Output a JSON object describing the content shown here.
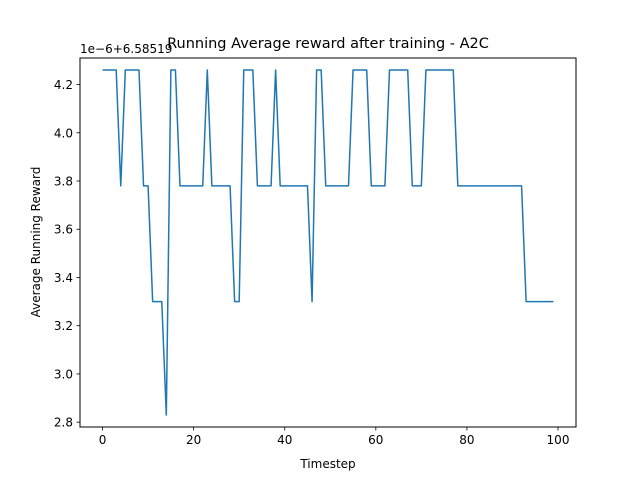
{
  "chart_data": {
    "type": "line",
    "title": "Running Average reward after training - A2C",
    "xlabel": "Timestep",
    "ylabel": "Average Running Reward",
    "offset_label": "1e−6+6.58519",
    "xlim": [
      -4.95,
      103.95
    ],
    "ylim": [
      2.78,
      4.31
    ],
    "x_ticks": [
      0,
      20,
      40,
      60,
      80,
      100
    ],
    "x_tick_labels": [
      "0",
      "20",
      "40",
      "60",
      "80",
      "100"
    ],
    "y_ticks": [
      2.8,
      3.0,
      3.2,
      3.4,
      3.6,
      3.8,
      4.0,
      4.2
    ],
    "y_tick_labels": [
      "2.8",
      "3.0",
      "3.2",
      "3.4",
      "3.6",
      "3.8",
      "4.0",
      "4.2"
    ],
    "grid": false,
    "series": [
      {
        "color": "#1f77b4",
        "x": [
          0,
          1,
          2,
          3,
          4,
          5,
          6,
          7,
          8,
          9,
          10,
          11,
          12,
          13,
          14,
          15,
          16,
          17,
          18,
          19,
          20,
          21,
          22,
          23,
          24,
          25,
          26,
          27,
          28,
          29,
          30,
          31,
          32,
          33,
          34,
          35,
          36,
          37,
          38,
          39,
          40,
          41,
          42,
          43,
          44,
          45,
          46,
          47,
          48,
          49,
          50,
          51,
          52,
          53,
          54,
          55,
          56,
          57,
          58,
          59,
          60,
          61,
          62,
          63,
          64,
          65,
          66,
          67,
          68,
          69,
          70,
          71,
          72,
          73,
          74,
          75,
          76,
          77,
          78,
          79,
          80,
          81,
          82,
          83,
          84,
          85,
          86,
          87,
          88,
          89,
          90,
          91,
          92,
          93,
          94,
          95,
          96,
          97,
          98,
          99
        ],
        "y": [
          4.26,
          4.26,
          4.26,
          4.26,
          3.78,
          4.26,
          4.26,
          4.26,
          4.26,
          3.78,
          3.78,
          3.3,
          3.3,
          3.3,
          2.83,
          4.26,
          4.26,
          3.78,
          3.78,
          3.78,
          3.78,
          3.78,
          3.78,
          4.26,
          3.78,
          3.78,
          3.78,
          3.78,
          3.78,
          3.3,
          3.3,
          4.26,
          4.26,
          4.26,
          3.78,
          3.78,
          3.78,
          3.78,
          4.26,
          3.78,
          3.78,
          3.78,
          3.78,
          3.78,
          3.78,
          3.78,
          3.3,
          4.26,
          4.26,
          3.78,
          3.78,
          3.78,
          3.78,
          3.78,
          3.78,
          4.26,
          4.26,
          4.26,
          4.26,
          3.78,
          3.78,
          3.78,
          3.78,
          4.26,
          4.26,
          4.26,
          4.26,
          4.26,
          3.78,
          3.78,
          3.78,
          4.26,
          4.26,
          4.26,
          4.26,
          4.26,
          4.26,
          4.26,
          3.78,
          3.78,
          3.78,
          3.78,
          3.78,
          3.78,
          3.78,
          3.78,
          3.78,
          3.78,
          3.78,
          3.78,
          3.78,
          3.78,
          3.78,
          3.3,
          3.3,
          3.3,
          3.3,
          3.3,
          3.3,
          3.3
        ]
      }
    ]
  }
}
